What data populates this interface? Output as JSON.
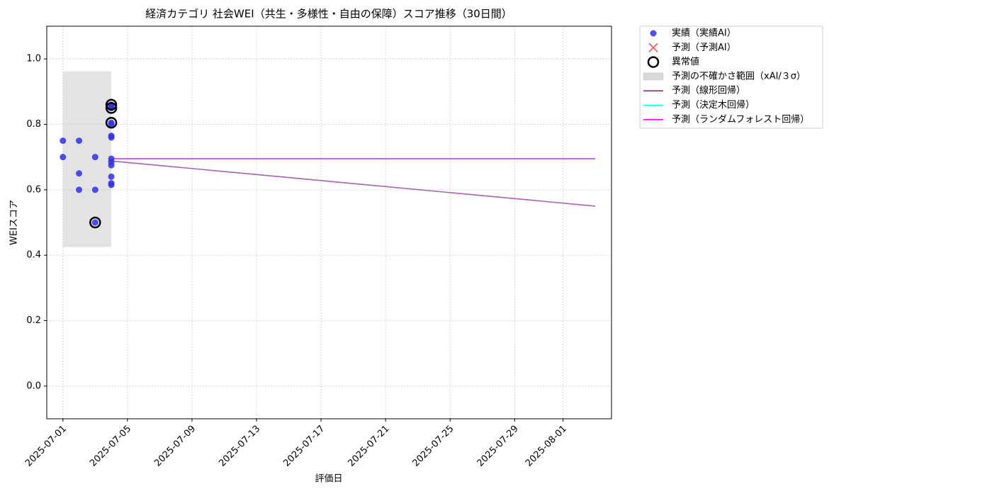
{
  "chart_data": {
    "type": "scatter",
    "title": "経済カテゴリ 社会WEI（共生・多様性・自由の保障）スコア推移（30日間）",
    "x_label": "評価日",
    "y_label": "WEIスコア",
    "xlim": [
      "2025-06-30",
      "2025-08-04"
    ],
    "ylim": [
      -0.1,
      1.1
    ],
    "xticks": [
      "2025-07-01",
      "2025-07-05",
      "2025-07-09",
      "2025-07-13",
      "2025-07-17",
      "2025-07-21",
      "2025-07-25",
      "2025-07-29",
      "2025-08-01"
    ],
    "yticks": [
      {
        "value": 0,
        "label": "0.0"
      },
      {
        "value": 0.2,
        "label": "0.2"
      },
      {
        "value": 0.4,
        "label": "0.4"
      },
      {
        "value": 0.6,
        "label": "0.6"
      },
      {
        "value": 0.8,
        "label": "0.8"
      },
      {
        "value": 1,
        "label": "1.0"
      }
    ],
    "grid": true,
    "legend": "outside upper right",
    "series": [
      {
        "name": "実績（実績AI）",
        "type": "scatter",
        "marker": "circle",
        "color": "#2f2ff0",
        "x": [
          "2025-07-01",
          "2025-07-01",
          "2025-07-02",
          "2025-07-02",
          "2025-07-02",
          "2025-07-03",
          "2025-07-03",
          "2025-07-03",
          "2025-07-04",
          "2025-07-04",
          "2025-07-04",
          "2025-07-04",
          "2025-07-04",
          "2025-07-04",
          "2025-07-04",
          "2025-07-04",
          "2025-07-04",
          "2025-07-04",
          "2025-07-04",
          "2025-07-04",
          "2025-07-04"
        ],
        "values": [
          0.75,
          0.7,
          0.75,
          0.65,
          0.6,
          0.5,
          0.7,
          0.6,
          0.86,
          0.85,
          0.805,
          0.765,
          0.76,
          0.695,
          0.685,
          0.675,
          0.64,
          0.62,
          0.615,
          0.855,
          0.8
        ]
      },
      {
        "name": "予測（予測AI）",
        "type": "scatter",
        "marker": "x",
        "color": "#ff3333",
        "x": [],
        "values": []
      },
      {
        "name": "異常値",
        "type": "scatter",
        "marker": "ring",
        "color": "#000000",
        "x": [
          "2025-07-03",
          "2025-07-04",
          "2025-07-04",
          "2025-07-04"
        ],
        "values": [
          0.5,
          0.86,
          0.85,
          0.805
        ]
      },
      {
        "name": "予測の不確かさ範囲（xAI/３σ）",
        "type": "band",
        "color": "#d9d9d9",
        "x": [
          "2025-07-01",
          "2025-07-04"
        ],
        "lower": [
          0.425,
          0.425
        ],
        "upper": [
          0.962,
          0.962
        ]
      },
      {
        "name": "予測（線形回帰）",
        "type": "line",
        "color": "#8e2a9a",
        "x": [
          "2025-07-04",
          "2025-08-03"
        ],
        "values": [
          0.688,
          0.55
        ]
      },
      {
        "name": "予測（決定木回帰）",
        "type": "line",
        "color": "#00ffff",
        "x": [
          "2025-07-04",
          "2025-08-03"
        ],
        "values": [
          0.695,
          0.695
        ]
      },
      {
        "name": "予測（ランダムフォレスト回帰）",
        "type": "line",
        "color": "#ff00ff",
        "x": [
          "2025-07-04",
          "2025-08-03"
        ],
        "values": [
          0.695,
          0.695
        ]
      }
    ]
  }
}
